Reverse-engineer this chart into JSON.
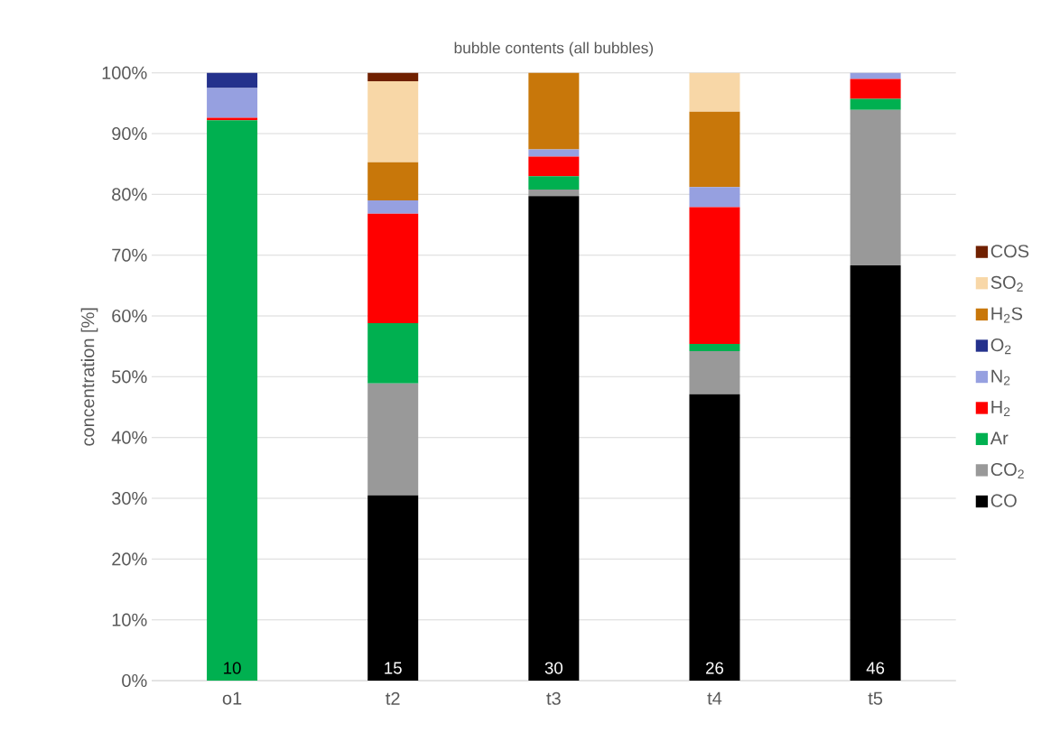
{
  "chart_data": {
    "type": "bar",
    "stacked": true,
    "title": "bubble contents (all bubbles)",
    "ylabel": "concentration [%]",
    "categories": [
      "o1",
      "t2",
      "t3",
      "t4",
      "t5"
    ],
    "series": [
      {
        "name": "CO",
        "color": "#000000",
        "values": [
          0,
          30.5,
          79.7,
          47.1,
          68.3
        ]
      },
      {
        "name": "CO$_{2}$",
        "color": "#999999",
        "values": [
          0,
          18.4,
          1.1,
          7.1,
          25.6
        ]
      },
      {
        "name": "Ar",
        "color": "#00b050",
        "values": [
          92.2,
          9.9,
          2.2,
          1.2,
          1.8
        ]
      },
      {
        "name": "H$_{2}$",
        "color": "#ff0000",
        "values": [
          0.4,
          18.0,
          3.2,
          22.5,
          3.3
        ]
      },
      {
        "name": "N$_{2}$",
        "color": "#96a0e0",
        "values": [
          4.9,
          2.2,
          1.2,
          3.3,
          1.0
        ]
      },
      {
        "name": "O$_{2}$",
        "color": "#24318c",
        "values": [
          2.5,
          0,
          0,
          0,
          0
        ]
      },
      {
        "name": "H$_{2}$S",
        "color": "#c8770a",
        "values": [
          0,
          6.3,
          12.6,
          12.4,
          0
        ]
      },
      {
        "name": "SO$_{2}$",
        "color": "#f8d7a7",
        "values": [
          0,
          13.3,
          0,
          6.4,
          0
        ]
      },
      {
        "name": "COS",
        "color": "#702000",
        "values": [
          0,
          1.4,
          0,
          0,
          0
        ]
      }
    ],
    "ylim": [
      0,
      100
    ],
    "yticks": [
      {
        "value": 0,
        "label": "0%"
      },
      {
        "value": 10,
        "label": "10%"
      },
      {
        "value": 20,
        "label": "20%"
      },
      {
        "value": 30,
        "label": "30%"
      },
      {
        "value": 40,
        "label": "40%"
      },
      {
        "value": 50,
        "label": "50%"
      },
      {
        "value": 60,
        "label": "60%"
      },
      {
        "value": 70,
        "label": "70%"
      },
      {
        "value": 80,
        "label": "80%"
      },
      {
        "value": 90,
        "label": "90%"
      },
      {
        "value": 100,
        "label": "100%"
      }
    ],
    "grid": "y",
    "legend": "right",
    "annotations": [
      "10",
      "15",
      "30",
      "26",
      "46"
    ]
  }
}
